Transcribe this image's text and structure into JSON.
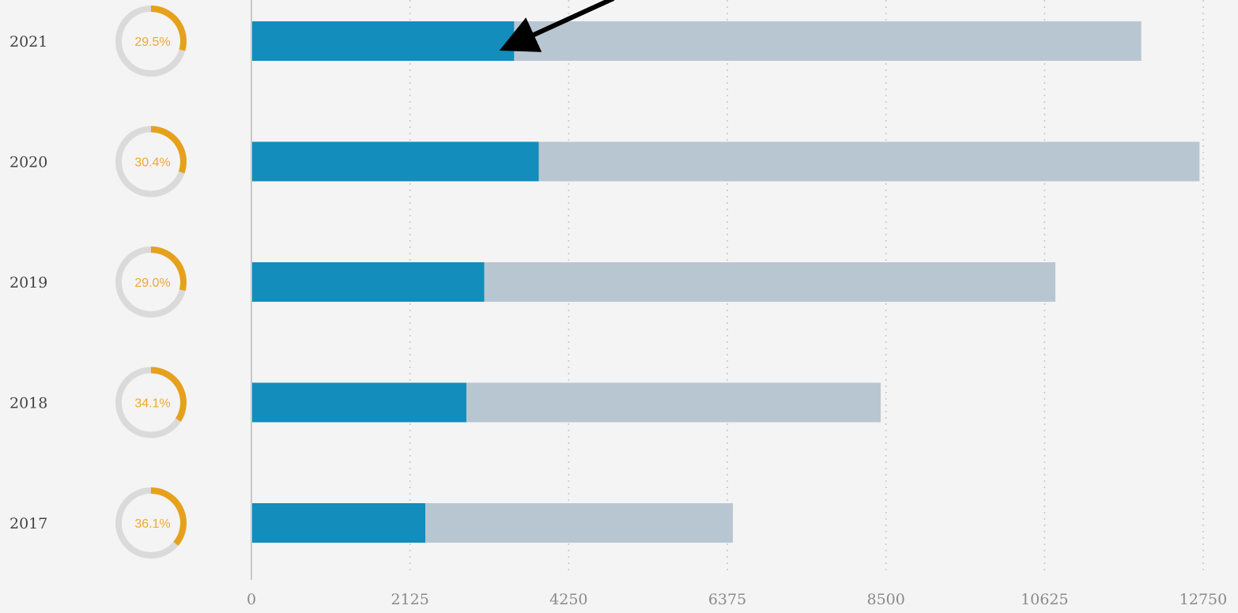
{
  "chart_data": {
    "type": "bar",
    "orientation": "horizontal",
    "stacked": true,
    "categories": [
      "2021",
      "2020",
      "2019",
      "2018",
      "2017"
    ],
    "series": [
      {
        "values": [
          3520,
          3850,
          3120,
          2880,
          2330
        ]
      },
      {
        "values": [
          8400,
          8850,
          7650,
          5550,
          4120
        ]
      }
    ],
    "totals": [
      11920,
      12700,
      10770,
      8430,
      6450
    ],
    "ratios": [
      {
        "value": 29.5,
        "label": "29.5%"
      },
      {
        "value": 30.4,
        "label": "30.4%"
      },
      {
        "value": 29.0,
        "label": "29.0%"
      },
      {
        "value": 34.1,
        "label": "34.1%"
      },
      {
        "value": 36.1,
        "label": "36.1%"
      }
    ],
    "xticks": [
      "0",
      "2125",
      "4250",
      "6375",
      "8500",
      "10625",
      "12750"
    ],
    "xlim": [
      0,
      12750
    ],
    "grid": true,
    "annotation": {
      "type": "arrow",
      "target_category": "2021",
      "target_value": 3520
    },
    "colors": {
      "series_1": "#138dbb",
      "series_2": "#b8c6d1",
      "ratio_ring": "#dadada",
      "ratio_arc": "#e6a11c",
      "ratio_text": "#f0a830",
      "axis": "#c8c8c8",
      "grid": "#c8c8c8",
      "arrow": "#000000"
    }
  }
}
